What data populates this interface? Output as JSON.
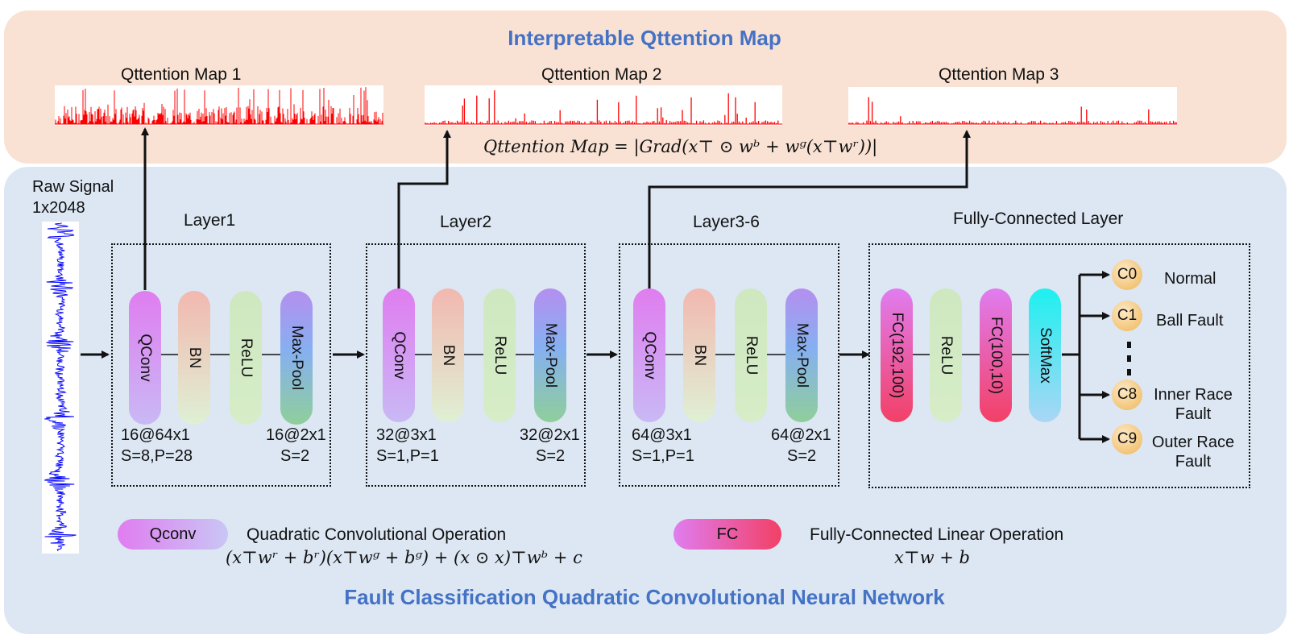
{
  "top_title": "Interpretable Qttention Map",
  "bottom_title": "Fault Classification Quadratic Convolutional Neural Network",
  "maps": [
    {
      "title": "Qttention  Map  1"
    },
    {
      "title": "Qttention  Map  2"
    },
    {
      "title": "Qttention  Map  3"
    }
  ],
  "formula_map": "Qttention Map  =  |Grad(x⊤ ⊙ wᵇ + wᵍ(x⊤wʳ))|",
  "raw_signal": {
    "line1": "Raw Signal",
    "line2": "1x2048"
  },
  "layers": [
    {
      "title": "Layer1",
      "blocks": [
        "QConv",
        "BN",
        "ReLU",
        "Max-Pool"
      ],
      "left_a": "16@64x1",
      "left_b": "S=8,P=28",
      "right_a": "16@2x1",
      "right_b": "S=2"
    },
    {
      "title": "Layer2",
      "blocks": [
        "QConv",
        "BN",
        "ReLU",
        "Max-Pool"
      ],
      "left_a": "32@3x1",
      "left_b": "S=1,P=1",
      "right_a": "32@2x1",
      "right_b": "S=2"
    },
    {
      "title": "Layer3-6",
      "blocks": [
        "QConv",
        "BN",
        "ReLU",
        "Max-Pool"
      ],
      "left_a": "64@3x1",
      "left_b": "S=1,P=1",
      "right_a": "64@2x1",
      "right_b": "S=2"
    }
  ],
  "fc_layer": {
    "title": "Fully-Connected Layer",
    "blocks": [
      "FC(192,100)",
      "ReLU",
      "FC(100,10)",
      "SoftMax"
    ]
  },
  "outputs": [
    {
      "code": "C0",
      "label": "Normal"
    },
    {
      "code": "C1",
      "label": "Ball Fault"
    },
    {
      "code": "C8",
      "label": "Inner Race Fault"
    },
    {
      "code": "C9",
      "label": "Outer Race Fault"
    }
  ],
  "legend": {
    "qconv_label": "Qconv",
    "qconv_desc": "Quadratic  Convolutional  Operation",
    "qconv_formula": "(x⊤wʳ + bʳ)(x⊤wᵍ + bᵍ) + (x ⊙ x)⊤wᵇ + c",
    "fc_label": "FC",
    "fc_desc": "Fully-Connected  Linear  Operation",
    "fc_formula": "x⊤w + b"
  },
  "colors": {
    "title_blue": "#4472c4",
    "signal": "#0000ff",
    "attention": "#ff0000"
  }
}
